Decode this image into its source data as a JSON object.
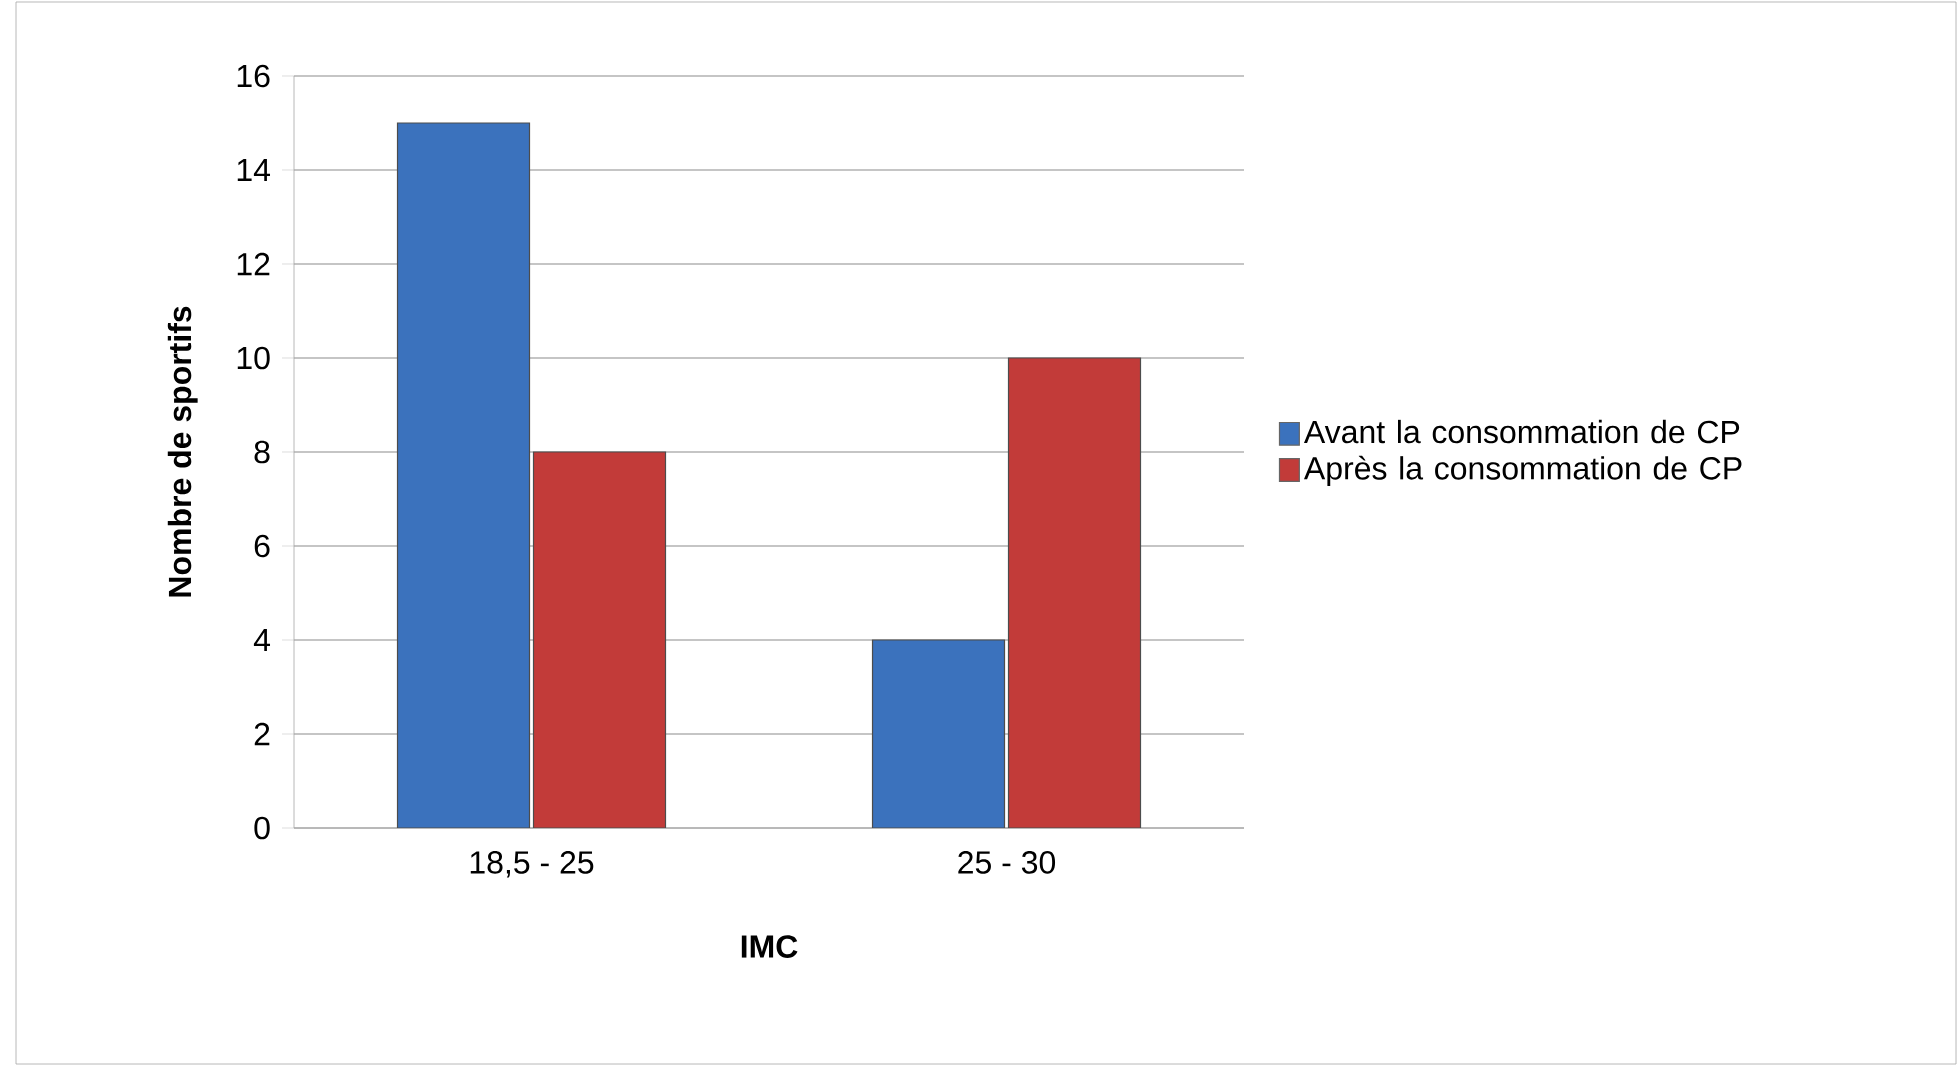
{
  "chart_data": {
    "type": "bar",
    "xlabel": "IMC",
    "ylabel": "Nombre de sportifs",
    "categories": [
      "18,5 - 25",
      "25 - 30"
    ],
    "series": [
      {
        "name": "Avant la consommation de CP",
        "color": "#3b72bd",
        "values": [
          15,
          4
        ]
      },
      {
        "name": "Après la consommation de CP",
        "color": "#c23b39",
        "values": [
          8,
          10
        ]
      }
    ],
    "ylim": [
      0,
      16
    ],
    "yticks": [
      0,
      2,
      4,
      6,
      8,
      10,
      12,
      14,
      16
    ],
    "grid": "y",
    "legend": "right"
  }
}
